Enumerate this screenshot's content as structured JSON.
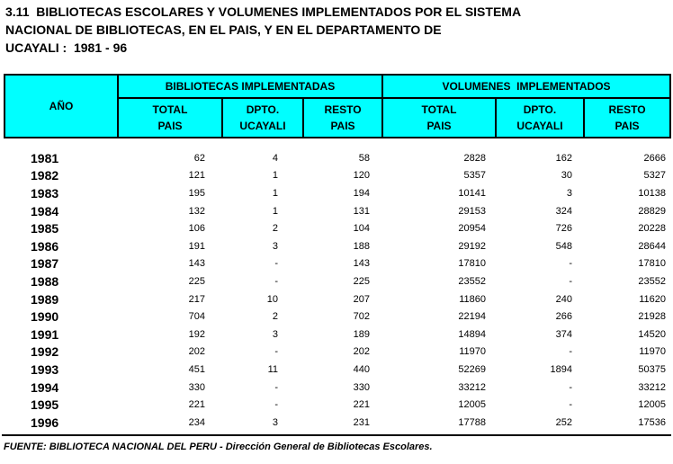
{
  "title": {
    "line1": "3.11  BIBLIOTECAS ESCOLARES Y VOLUMENES IMPLEMENTADOS POR EL SISTEMA",
    "line2": "NACIONAL DE BIBLIOTECAS, EN EL PAIS, Y EN EL DEPARTAMENTO DE",
    "line3": "UCAYALI :  1981 - 96"
  },
  "table": {
    "columns": {
      "year": "AÑO",
      "groups": [
        {
          "label": "BIBLIOTECAS IMPLEMENTADAS",
          "subcolumns": [
            "TOTAL\nPAIS",
            "DPTO.\nUCAYALI",
            "RESTO\nPAIS"
          ]
        },
        {
          "label": "VOLUMENES  IMPLEMENTADOS",
          "subcolumns": [
            "TOTAL\nPAIS",
            "DPTO.\nUCAYALI",
            "RESTO\nPAIS"
          ]
        }
      ]
    },
    "rows": [
      {
        "year": "1981",
        "values": [
          "62",
          "4",
          "58",
          "2828",
          "162",
          "2666"
        ]
      },
      {
        "year": "1982",
        "values": [
          "121",
          "1",
          "120",
          "5357",
          "30",
          "5327"
        ]
      },
      {
        "year": "1983",
        "values": [
          "195",
          "1",
          "194",
          "10141",
          "3",
          "10138"
        ]
      },
      {
        "year": "1984",
        "values": [
          "132",
          "1",
          "131",
          "29153",
          "324",
          "28829"
        ]
      },
      {
        "year": "1985",
        "values": [
          "106",
          "2",
          "104",
          "20954",
          "726",
          "20228"
        ]
      },
      {
        "year": "1986",
        "values": [
          "191",
          "3",
          "188",
          "29192",
          "548",
          "28644"
        ]
      },
      {
        "year": "1987",
        "values": [
          "143",
          "-",
          "143",
          "17810",
          "-",
          "17810"
        ]
      },
      {
        "year": "1988",
        "values": [
          "225",
          "-",
          "225",
          "23552",
          "-",
          "23552"
        ]
      },
      {
        "year": "1989",
        "values": [
          "217",
          "10",
          "207",
          "11860",
          "240",
          "11620"
        ]
      },
      {
        "year": "1990",
        "values": [
          "704",
          "2",
          "702",
          "22194",
          "266",
          "21928"
        ]
      },
      {
        "year": "1991",
        "values": [
          "192",
          "3",
          "189",
          "14894",
          "374",
          "14520"
        ]
      },
      {
        "year": "1992",
        "values": [
          "202",
          "-",
          "202",
          "11970",
          "-",
          "11970"
        ]
      },
      {
        "year": "1993",
        "values": [
          "451",
          "11",
          "440",
          "52269",
          "1894",
          "50375"
        ]
      },
      {
        "year": "1994",
        "values": [
          "330",
          "-",
          "330",
          "33212",
          "-",
          "33212"
        ]
      },
      {
        "year": "1995",
        "values": [
          "221",
          "-",
          "221",
          "12005",
          "-",
          "12005"
        ]
      },
      {
        "year": "1996",
        "values": [
          "234",
          "3",
          "231",
          "17788",
          "252",
          "17536"
        ]
      }
    ]
  },
  "footer": {
    "source": "FUENTE: BIBLIOTECA NACIONAL DEL PERU - Dirección General de Bibliotecas Escolares."
  },
  "colors": {
    "header_bg": "#00FFFF",
    "border": "#000000",
    "text": "#000000",
    "background": "#FFFFFF"
  }
}
